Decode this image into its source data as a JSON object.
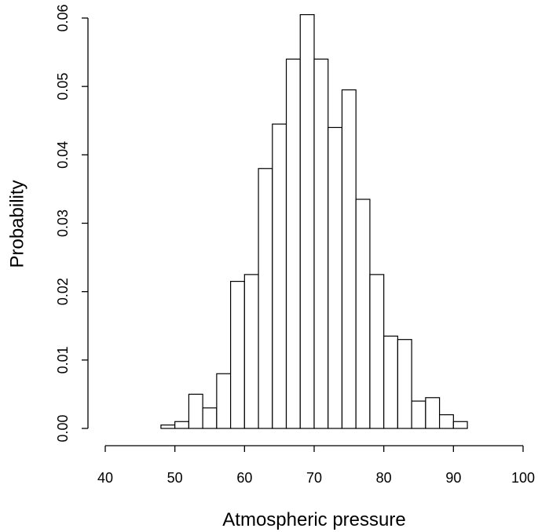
{
  "chart_data": {
    "type": "bar",
    "subtype": "histogram",
    "title": "",
    "xlabel": "Atmospheric pressure",
    "ylabel": "Probability",
    "bin_width": 2,
    "bins": [
      {
        "x0": 48,
        "x1": 50,
        "value": 0.0005
      },
      {
        "x0": 50,
        "x1": 52,
        "value": 0.001
      },
      {
        "x0": 52,
        "x1": 54,
        "value": 0.005
      },
      {
        "x0": 54,
        "x1": 56,
        "value": 0.003
      },
      {
        "x0": 56,
        "x1": 58,
        "value": 0.008
      },
      {
        "x0": 58,
        "x1": 60,
        "value": 0.0215
      },
      {
        "x0": 60,
        "x1": 62,
        "value": 0.0225
      },
      {
        "x0": 62,
        "x1": 64,
        "value": 0.038
      },
      {
        "x0": 64,
        "x1": 66,
        "value": 0.0445
      },
      {
        "x0": 66,
        "x1": 68,
        "value": 0.054
      },
      {
        "x0": 68,
        "x1": 70,
        "value": 0.0605
      },
      {
        "x0": 70,
        "x1": 72,
        "value": 0.054
      },
      {
        "x0": 72,
        "x1": 74,
        "value": 0.044
      },
      {
        "x0": 74,
        "x1": 76,
        "value": 0.0495
      },
      {
        "x0": 76,
        "x1": 78,
        "value": 0.0335
      },
      {
        "x0": 78,
        "x1": 80,
        "value": 0.0225
      },
      {
        "x0": 80,
        "x1": 82,
        "value": 0.0135
      },
      {
        "x0": 82,
        "x1": 84,
        "value": 0.013
      },
      {
        "x0": 84,
        "x1": 86,
        "value": 0.004
      },
      {
        "x0": 86,
        "x1": 88,
        "value": 0.0045
      },
      {
        "x0": 88,
        "x1": 90,
        "value": 0.002
      },
      {
        "x0": 90,
        "x1": 92,
        "value": 0.001
      }
    ],
    "xlim": [
      40,
      100
    ],
    "ylim": [
      0,
      0.06
    ],
    "x_ticks": [
      40,
      50,
      60,
      70,
      80,
      90,
      100
    ],
    "x_tick_labels": [
      "40",
      "50",
      "60",
      "70",
      "80",
      "90",
      "100"
    ],
    "y_ticks": [
      0,
      0.01,
      0.02,
      0.03,
      0.04,
      0.05,
      0.06
    ],
    "y_tick_labels": [
      "0.00",
      "0.01",
      "0.02",
      "0.03",
      "0.04",
      "0.05",
      "0.06"
    ],
    "grid": false,
    "legend": "none",
    "colors": {
      "bar_fill": "#ffffff",
      "bar_stroke": "#000000"
    }
  }
}
